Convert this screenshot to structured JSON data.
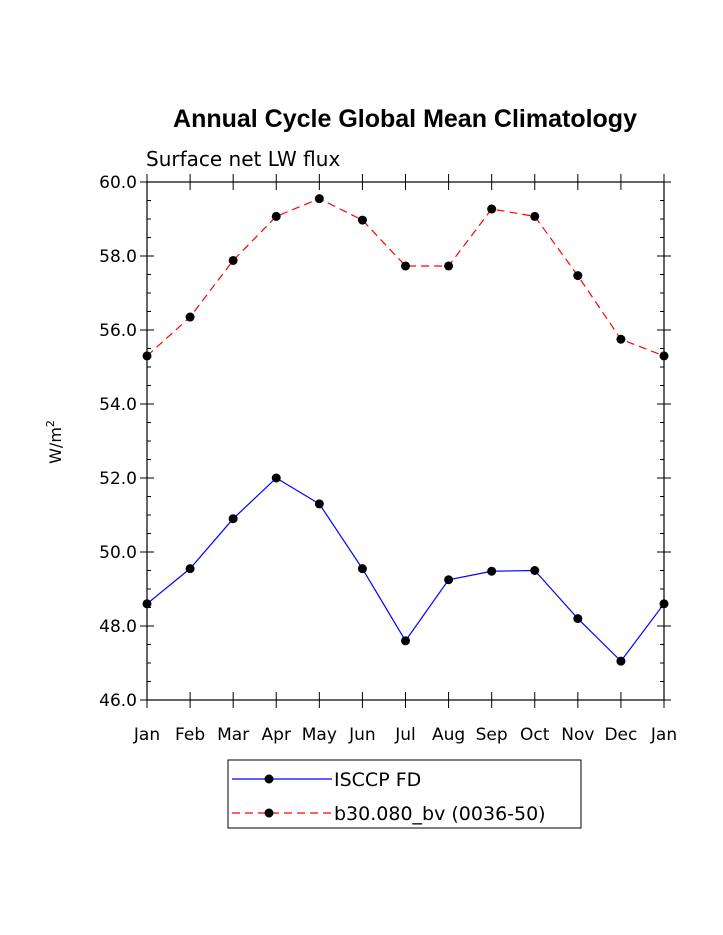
{
  "chart_data": {
    "type": "line",
    "title": "Annual Cycle Global Mean Climatology",
    "subtitle": "Surface net LW flux",
    "ylabel": "W/m",
    "ylabel_superscript": "2",
    "xlabel": "",
    "categories": [
      "Jan",
      "Feb",
      "Mar",
      "Apr",
      "May",
      "Jun",
      "Jul",
      "Aug",
      "Sep",
      "Oct",
      "Nov",
      "Dec",
      "Jan"
    ],
    "ylim": [
      46.0,
      60.0
    ],
    "yticks": [
      "46.0",
      "48.0",
      "50.0",
      "52.0",
      "54.0",
      "56.0",
      "58.0",
      "60.0"
    ],
    "ytick_values": [
      46,
      48,
      50,
      52,
      54,
      56,
      58,
      60
    ],
    "series": [
      {
        "name": "ISCCP FD",
        "color": "#0000ff",
        "line_style": "solid",
        "values": [
          48.6,
          49.55,
          50.9,
          52.0,
          51.3,
          49.55,
          47.6,
          49.25,
          49.48,
          49.5,
          48.2,
          47.05,
          48.6
        ]
      },
      {
        "name": "b30.080_bv (0036-50)",
        "color": "#ff0000",
        "line_style": "dashed",
        "values": [
          55.3,
          56.35,
          57.88,
          59.07,
          59.55,
          58.97,
          57.73,
          57.73,
          59.27,
          59.07,
          57.47,
          55.75,
          55.3
        ]
      }
    ],
    "legend_position": "bottom"
  }
}
